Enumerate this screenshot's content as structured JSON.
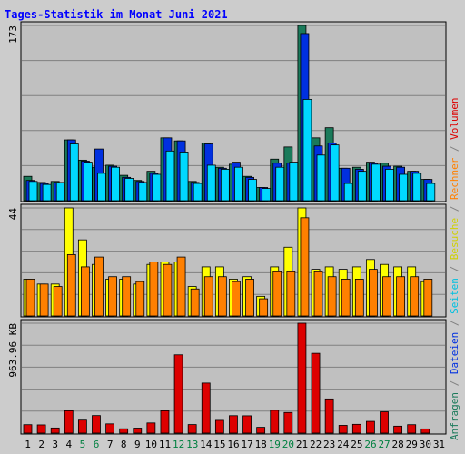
{
  "title": "Tages-Statistik im Monat Juni 2021",
  "colors": {
    "background": "#cccccc",
    "plot_background": "#c0c0c0",
    "grid": "#808080",
    "title": "#0000ff",
    "anfragen": "#1a7a5a",
    "dateien": "#0030e0",
    "seiten": "#00d8ff",
    "besuche": "#ffff00",
    "rechner": "#ff8000",
    "volumen": "#dd0000",
    "weekend_label": "#008040"
  },
  "chart_data": {
    "type": "bar",
    "title": "Tages-Statistik im Monat Juni 2021",
    "categories": [
      "1",
      "2",
      "3",
      "4",
      "5",
      "6",
      "7",
      "8",
      "9",
      "10",
      "11",
      "12",
      "13",
      "14",
      "15",
      "16",
      "17",
      "18",
      "19",
      "20",
      "21",
      "22",
      "23",
      "24",
      "25",
      "26",
      "27",
      "28",
      "29",
      "30",
      "31"
    ],
    "weekend_days": [
      "5",
      "6",
      "12",
      "13",
      "19",
      "20",
      "26",
      "27"
    ],
    "y_axis_side_labels": [
      {
        "text": "Anfragen",
        "color": "#1a7a5a"
      },
      {
        "text": " / ",
        "color": "#808080"
      },
      {
        "text": "Dateien",
        "color": "#0030e0"
      },
      {
        "text": " / ",
        "color": "#808080"
      },
      {
        "text": "Seiten",
        "color": "#00c0e0"
      },
      {
        "text": " / ",
        "color": "#808080"
      },
      {
        "text": "Besuche",
        "color": "#d0d000"
      },
      {
        "text": " / ",
        "color": "#808080"
      },
      {
        "text": "Rechner",
        "color": "#ff8000"
      },
      {
        "text": " / ",
        "color": "#808080"
      },
      {
        "text": "Volumen",
        "color": "#dd0000"
      }
    ],
    "panels": [
      {
        "id": "top",
        "max_label": "173",
        "ylim": [
          0,
          173
        ],
        "series": [
          {
            "name": "Anfragen",
            "color": "#1a7a5a",
            "values": [
              24,
              18,
              19,
              60,
              40,
              33,
              35,
              25,
              20,
              29,
              62,
              59,
              19,
              57,
              33,
              36,
              24,
              13,
              41,
              53,
              173,
              62,
              72,
              32,
              33,
              38,
              37,
              34,
              29,
              21,
              0
            ]
          },
          {
            "name": "Dateien",
            "color": "#0030e0",
            "values": [
              20,
              17,
              18,
              60,
              39,
              51,
              34,
              23,
              19,
              27,
              62,
              59,
              18,
              56,
              32,
              38,
              23,
              13,
              37,
              37,
              165,
              54,
              57,
              32,
              31,
              37,
              34,
              33,
              29,
              21,
              0
            ]
          },
          {
            "name": "Seiten",
            "color": "#00d8ff",
            "values": [
              19,
              16,
              18,
              56,
              38,
              27,
              33,
              22,
              18,
              26,
              49,
              48,
              17,
              35,
              31,
              33,
              21,
              12,
              33,
              38,
              100,
              45,
              55,
              17,
              29,
              36,
              31,
              26,
              27,
              17,
              0
            ]
          }
        ]
      },
      {
        "id": "middle",
        "max_label": "44",
        "ylim": [
          0,
          44
        ],
        "series": [
          {
            "name": "Besuche",
            "color": "#ffff00",
            "values": [
              15,
              13,
              13,
              44,
              31,
              21,
              15,
              15,
              13,
              21,
              22,
              22,
              12,
              20,
              20,
              15,
              16,
              8,
              20,
              28,
              44,
              19,
              20,
              19,
              20,
              23,
              21,
              20,
              20,
              14,
              0
            ]
          },
          {
            "name": "Rechner",
            "color": "#ff8000",
            "values": [
              15,
              13,
              12,
              25,
              20,
              24,
              16,
              16,
              14,
              22,
              21,
              24,
              11,
              16,
              16,
              14,
              15,
              7,
              18,
              18,
              40,
              18,
              16,
              15,
              15,
              19,
              16,
              16,
              16,
              15,
              0
            ]
          }
        ]
      },
      {
        "id": "bottom",
        "max_label": "963.96 KB",
        "ylim": [
          0,
          963.96
        ],
        "series": [
          {
            "name": "Volumen",
            "color": "#dd0000",
            "values": [
              74,
              72,
              45,
              196,
              114,
              154,
              81,
              38,
              44,
              89,
              196,
              687,
              75,
              439,
              112,
              153,
              152,
              51,
              200,
              181,
              963.96,
              700,
              300,
              68,
              77,
              103,
              187,
              61,
              74,
              37,
              0
            ]
          }
        ]
      }
    ]
  }
}
